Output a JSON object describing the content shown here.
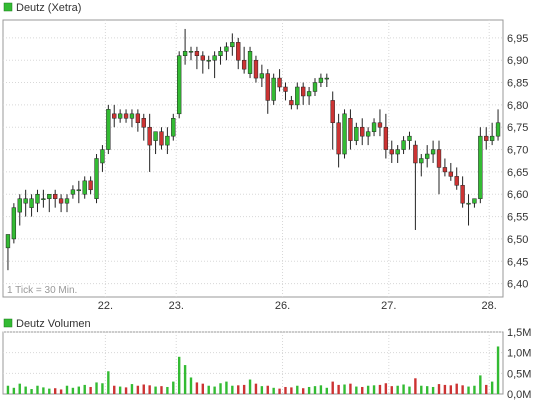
{
  "chart_data": [
    {
      "type": "candlestick",
      "title": "Deutz (Xetra)",
      "legend_color": "#33bb33",
      "note": "1 Tick = 30 Min.",
      "x_labels": [
        "22.",
        "23.",
        "26.",
        "27.",
        "28."
      ],
      "y_ticks": [
        "6,40",
        "6,45",
        "6,50",
        "6,55",
        "6,60",
        "6,65",
        "6,70",
        "6,75",
        "6,80",
        "6,85",
        "6,90",
        "6,95"
      ],
      "ylim": [
        6.37,
        6.99
      ],
      "up_color": "#33bb33",
      "down_color": "#cc3333",
      "grid": true,
      "candles": [
        [
          6.48,
          6.51,
          6.43,
          6.51
        ],
        [
          6.5,
          6.58,
          6.49,
          6.57
        ],
        [
          6.56,
          6.6,
          6.53,
          6.59
        ],
        [
          6.58,
          6.61,
          6.55,
          6.59
        ],
        [
          6.57,
          6.6,
          6.55,
          6.59
        ],
        [
          6.58,
          6.61,
          6.56,
          6.6
        ],
        [
          6.59,
          6.61,
          6.57,
          6.59
        ],
        [
          6.59,
          6.6,
          6.56,
          6.6
        ],
        [
          6.6,
          6.61,
          6.57,
          6.59
        ],
        [
          6.59,
          6.6,
          6.56,
          6.58
        ],
        [
          6.58,
          6.6,
          6.56,
          6.59
        ],
        [
          6.6,
          6.62,
          6.59,
          6.61
        ],
        [
          6.61,
          6.63,
          6.58,
          6.61
        ],
        [
          6.6,
          6.64,
          6.59,
          6.63
        ],
        [
          6.63,
          6.64,
          6.6,
          6.61
        ],
        [
          6.59,
          6.69,
          6.58,
          6.68
        ],
        [
          6.67,
          6.71,
          6.65,
          6.7
        ],
        [
          6.7,
          6.8,
          6.69,
          6.79
        ],
        [
          6.78,
          6.8,
          6.75,
          6.77
        ],
        [
          6.77,
          6.79,
          6.76,
          6.78
        ],
        [
          6.78,
          6.79,
          6.76,
          6.77
        ],
        [
          6.77,
          6.79,
          6.75,
          6.78
        ],
        [
          6.78,
          6.79,
          6.74,
          6.76
        ],
        [
          6.77,
          6.78,
          6.72,
          6.75
        ],
        [
          6.75,
          6.78,
          6.65,
          6.71
        ],
        [
          6.72,
          6.74,
          6.69,
          6.74
        ],
        [
          6.74,
          6.75,
          6.7,
          6.71
        ],
        [
          6.71,
          6.75,
          6.69,
          6.73
        ],
        [
          6.73,
          6.78,
          6.72,
          6.77
        ],
        [
          6.78,
          6.92,
          6.77,
          6.91
        ],
        [
          6.91,
          6.97,
          6.89,
          6.92
        ],
        [
          6.92,
          6.93,
          6.9,
          6.92
        ],
        [
          6.92,
          6.93,
          6.88,
          6.91
        ],
        [
          6.91,
          6.92,
          6.87,
          6.9
        ],
        [
          6.9,
          6.91,
          6.88,
          6.9
        ],
        [
          6.9,
          6.92,
          6.86,
          6.91
        ],
        [
          6.91,
          6.93,
          6.89,
          6.92
        ],
        [
          6.92,
          6.94,
          6.9,
          6.93
        ],
        [
          6.93,
          6.96,
          6.91,
          6.94
        ],
        [
          6.94,
          6.95,
          6.88,
          6.9
        ],
        [
          6.9,
          6.93,
          6.87,
          6.88
        ],
        [
          6.87,
          6.93,
          6.86,
          6.92
        ],
        [
          6.9,
          6.91,
          6.85,
          6.86
        ],
        [
          6.86,
          6.89,
          6.84,
          6.87
        ],
        [
          6.87,
          6.88,
          6.78,
          6.81
        ],
        [
          6.81,
          6.87,
          6.8,
          6.86
        ],
        [
          6.86,
          6.88,
          6.83,
          6.84
        ],
        [
          6.84,
          6.85,
          6.81,
          6.83
        ],
        [
          6.81,
          6.82,
          6.79,
          6.8
        ],
        [
          6.8,
          6.85,
          6.79,
          6.84
        ],
        [
          6.84,
          6.85,
          6.8,
          6.82
        ],
        [
          6.82,
          6.84,
          6.8,
          6.83
        ],
        [
          6.83,
          6.86,
          6.82,
          6.85
        ],
        [
          6.85,
          6.87,
          6.84,
          6.86
        ],
        [
          6.86,
          6.87,
          6.84,
          6.86
        ],
        [
          6.81,
          6.83,
          6.7,
          6.76
        ],
        [
          6.76,
          6.78,
          6.66,
          6.69
        ],
        [
          6.69,
          6.79,
          6.68,
          6.78
        ],
        [
          6.77,
          6.79,
          6.7,
          6.72
        ],
        [
          6.72,
          6.76,
          6.71,
          6.75
        ],
        [
          6.75,
          6.77,
          6.71,
          6.73
        ],
        [
          6.73,
          6.75,
          6.71,
          6.74
        ],
        [
          6.74,
          6.77,
          6.73,
          6.76
        ],
        [
          6.76,
          6.79,
          6.73,
          6.75
        ],
        [
          6.75,
          6.78,
          6.68,
          6.7
        ],
        [
          6.7,
          6.72,
          6.67,
          6.69
        ],
        [
          6.69,
          6.71,
          6.67,
          6.7
        ],
        [
          6.7,
          6.73,
          6.69,
          6.72
        ],
        [
          6.72,
          6.74,
          6.7,
          6.73
        ],
        [
          6.71,
          6.72,
          6.52,
          6.67
        ],
        [
          6.67,
          6.69,
          6.64,
          6.68
        ],
        [
          6.68,
          6.71,
          6.66,
          6.69
        ],
        [
          6.69,
          6.72,
          6.67,
          6.7
        ],
        [
          6.7,
          6.72,
          6.6,
          6.66
        ],
        [
          6.66,
          6.68,
          6.64,
          6.65
        ],
        [
          6.65,
          6.67,
          6.63,
          6.64
        ],
        [
          6.64,
          6.66,
          6.61,
          6.62
        ],
        [
          6.62,
          6.64,
          6.57,
          6.58
        ],
        [
          6.58,
          6.6,
          6.53,
          6.58
        ],
        [
          6.58,
          6.59,
          6.57,
          6.59
        ],
        [
          6.59,
          6.75,
          6.58,
          6.73
        ],
        [
          6.73,
          6.75,
          6.7,
          6.72
        ],
        [
          6.72,
          6.76,
          6.71,
          6.73
        ],
        [
          6.73,
          6.79,
          6.72,
          6.76
        ]
      ]
    },
    {
      "type": "bar",
      "title": "Deutz Volumen",
      "legend_color": "#33bb33",
      "y_ticks": [
        "0,0M",
        "0,5M",
        "1,0M",
        "1,5M"
      ],
      "ylim": [
        0,
        1500000
      ],
      "up_color": "#33bb33",
      "down_color": "#cc3333",
      "values": [
        200000,
        150000,
        250000,
        180000,
        120000,
        200000,
        160000,
        130000,
        140000,
        110000,
        200000,
        150000,
        180000,
        220000,
        170000,
        280000,
        260000,
        550000,
        200000,
        180000,
        160000,
        240000,
        200000,
        230000,
        210000,
        180000,
        190000,
        170000,
        300000,
        900000,
        700000,
        400000,
        280000,
        250000,
        200000,
        180000,
        260000,
        300000,
        200000,
        210000,
        220000,
        350000,
        250000,
        190000,
        200000,
        150000,
        130000,
        170000,
        160000,
        200000,
        140000,
        170000,
        190000,
        210000,
        150000,
        300000,
        220000,
        230000,
        250000,
        180000,
        170000,
        200000,
        210000,
        220000,
        260000,
        190000,
        200000,
        230000,
        180000,
        380000,
        200000,
        190000,
        170000,
        240000,
        220000,
        210000,
        250000,
        210000,
        180000,
        200000,
        450000,
        220000,
        300000,
        1150000
      ]
    }
  ]
}
